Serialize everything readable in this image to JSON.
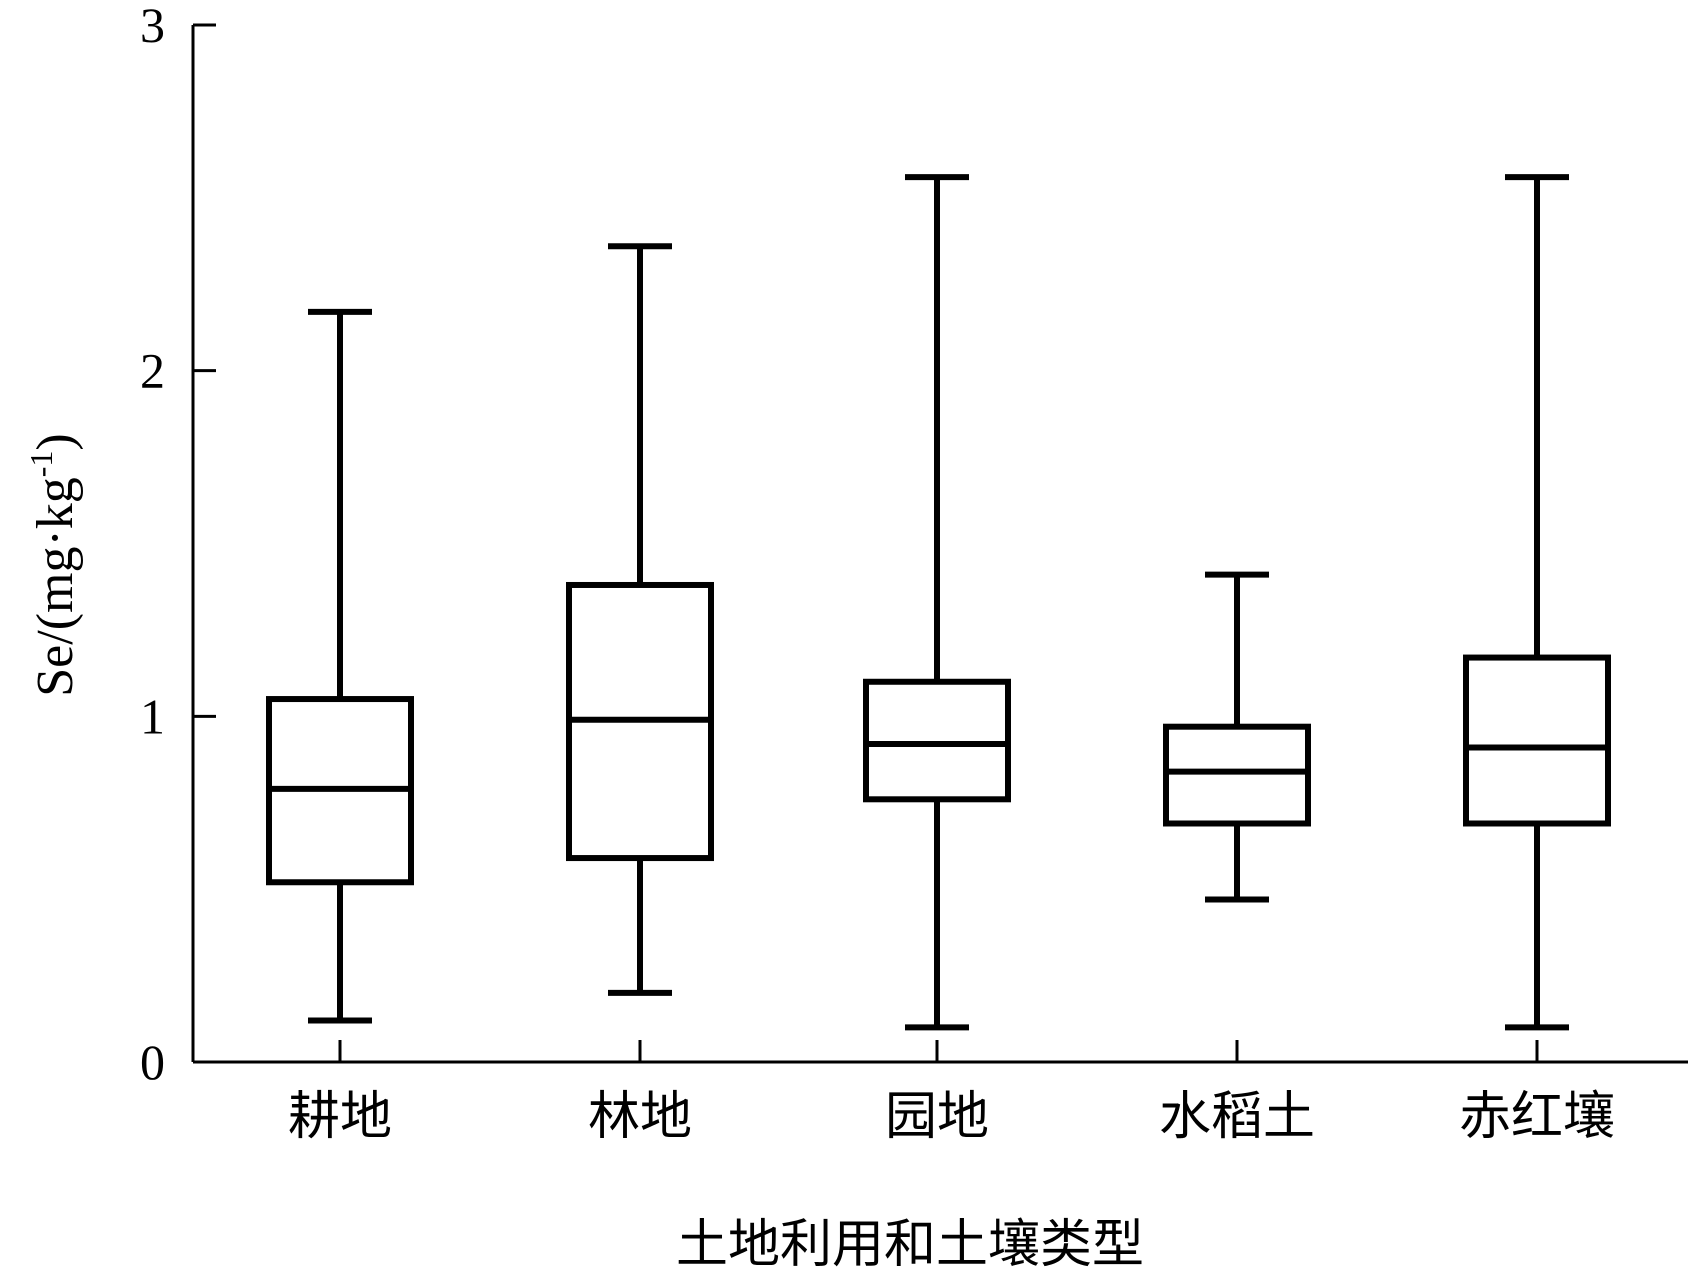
{
  "chart_data": {
    "type": "box",
    "xlabel": "土地利用和土壤类型",
    "ylabel": "Se/(mg·kg",
    "ylabel_sup": "-1",
    "ylabel_end": ")",
    "ylim": [
      0,
      3
    ],
    "yticks": [
      "0",
      "1",
      "2",
      "3"
    ],
    "grid": false,
    "categories": [
      "耕地",
      "林地",
      "园地",
      "水稻土",
      "赤红壤"
    ],
    "boxes": [
      {
        "category": "耕地",
        "min": 0.12,
        "q1": 0.52,
        "median": 0.79,
        "q3": 1.05,
        "max": 2.17
      },
      {
        "category": "林地",
        "min": 0.2,
        "q1": 0.59,
        "median": 0.99,
        "q3": 1.38,
        "max": 2.36
      },
      {
        "category": "园地",
        "min": 0.1,
        "q1": 0.76,
        "median": 0.92,
        "q3": 1.1,
        "max": 2.56
      },
      {
        "category": "水稻土",
        "min": 0.47,
        "q1": 0.69,
        "median": 0.84,
        "q3": 0.97,
        "max": 1.41
      },
      {
        "category": "赤红壤",
        "min": 0.1,
        "q1": 0.69,
        "median": 0.91,
        "q3": 1.17,
        "max": 2.56
      }
    ]
  }
}
